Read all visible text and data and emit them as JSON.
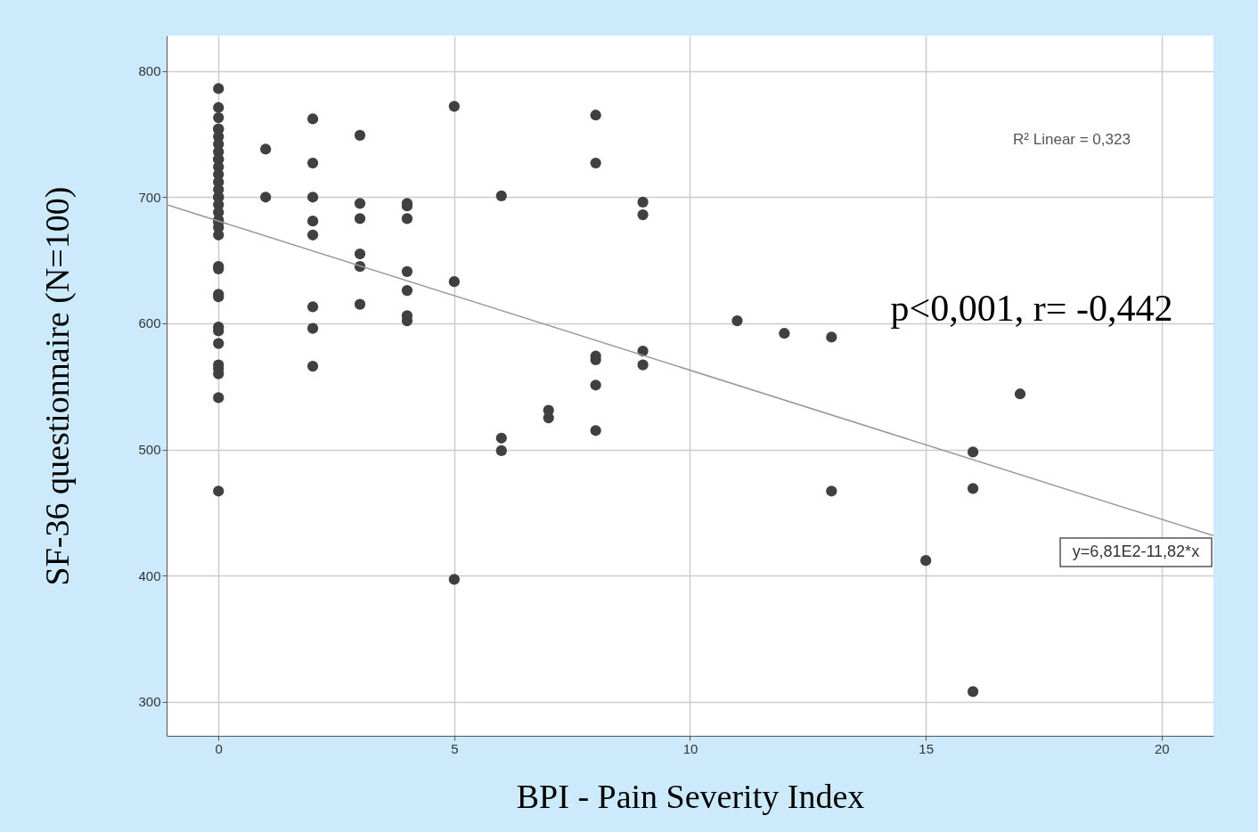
{
  "chart_data": {
    "type": "scatter",
    "xlabel": "BPI - Pain Severity Index",
    "ylabel": "SF-36 questionnaire (N=100)",
    "xlim": [
      -1.1,
      21.1
    ],
    "ylim": [
      273,
      828
    ],
    "xticks": [
      0,
      5,
      10,
      15,
      20
    ],
    "yticks": [
      300,
      400,
      500,
      600,
      700,
      800
    ],
    "grid": true,
    "marker": "circle",
    "series": [
      {
        "type": "scatter",
        "color": "#404040",
        "x": [
          0,
          0,
          0,
          0,
          0,
          0,
          0,
          0,
          0,
          0,
          0,
          0,
          0,
          0,
          0,
          0,
          0,
          0,
          0,
          0,
          0,
          0,
          0,
          0,
          0,
          0,
          0,
          0,
          0,
          0,
          0,
          0,
          0,
          0,
          1,
          1,
          2,
          2,
          2,
          2,
          2,
          2,
          2,
          2,
          3,
          3,
          3,
          3,
          3,
          3,
          4,
          4,
          4,
          4,
          4,
          4,
          4,
          5,
          5,
          5,
          6,
          6,
          6,
          7,
          7,
          8,
          8,
          8,
          8,
          8,
          8,
          9,
          9,
          9,
          9,
          11,
          12,
          13,
          13,
          15,
          16,
          16,
          16,
          17
        ],
        "values": [
          786,
          771,
          763,
          754,
          748,
          742,
          736,
          730,
          724,
          718,
          712,
          706,
          700,
          694,
          688,
          682,
          676,
          670,
          645,
          643,
          623,
          621,
          597,
          594,
          584,
          567,
          564,
          560,
          541,
          467,
          754,
          730,
          700,
          680,
          738,
          700,
          762,
          727,
          700,
          681,
          670,
          613,
          596,
          566,
          749,
          695,
          683,
          655,
          645,
          615,
          695,
          693,
          683,
          641,
          626,
          606,
          602,
          772,
          633,
          397,
          701,
          509,
          499,
          531,
          525,
          765,
          727,
          574,
          571,
          551,
          515,
          696,
          686,
          578,
          567,
          602,
          592,
          589,
          467,
          412,
          498,
          469,
          308,
          544
        ]
      },
      {
        "type": "line",
        "color": "#999999",
        "marker": "none",
        "x": [
          -1.1,
          21.1
        ],
        "values": [
          694.0,
          431.6
        ]
      }
    ],
    "annotations": [
      "R² Linear = 0,323",
      "p<0,001, r= -0,442",
      "y=6,81E2-11,82*x"
    ]
  }
}
